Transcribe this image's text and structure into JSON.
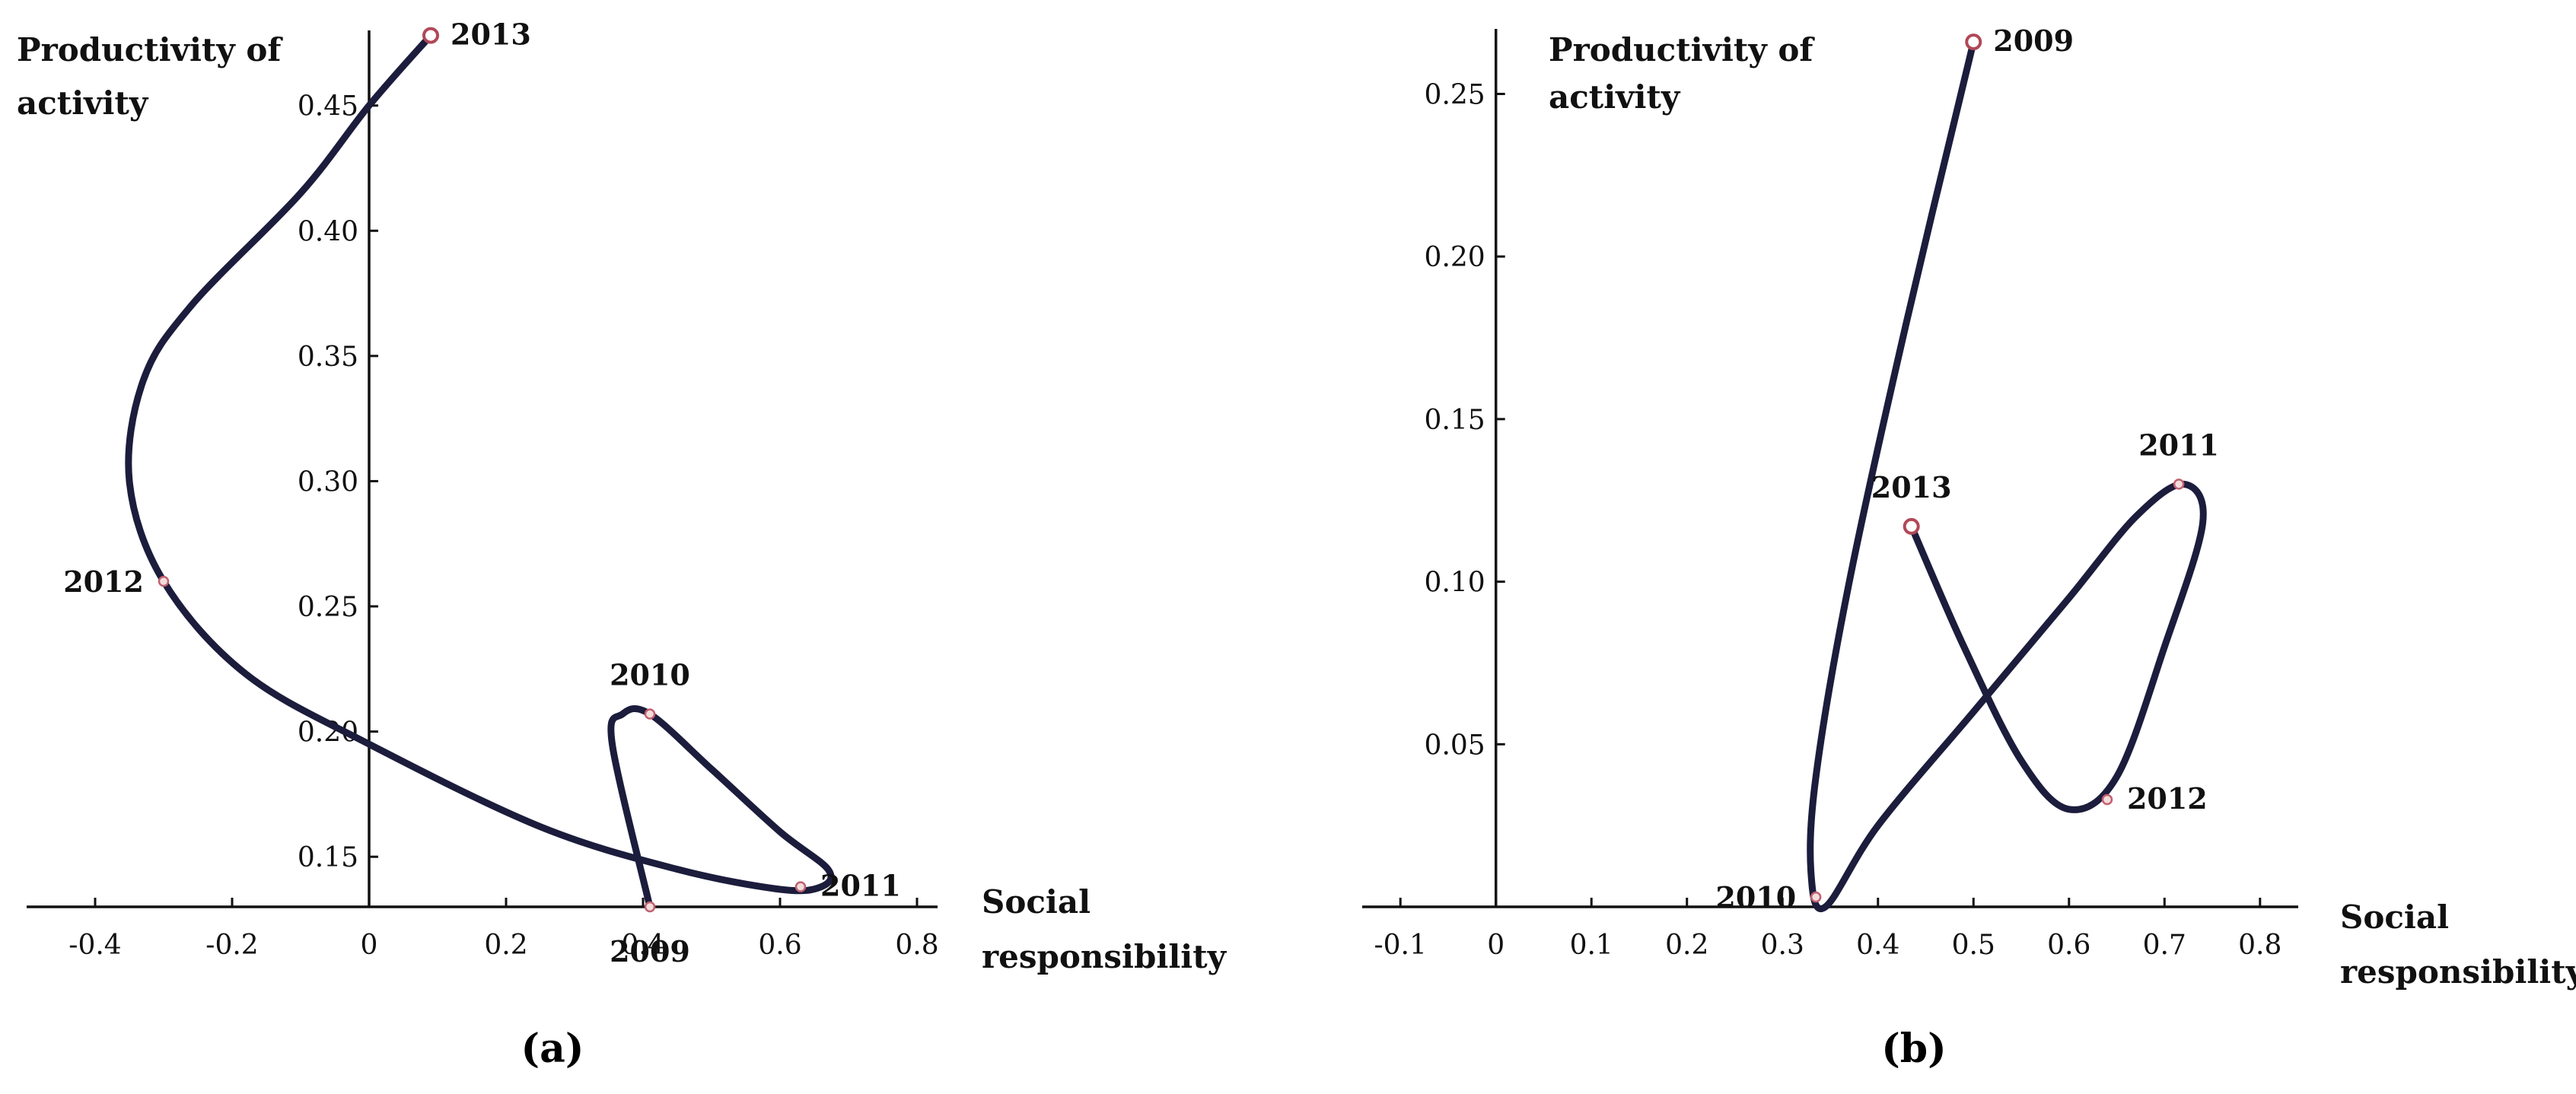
{
  "chart_data": [
    {
      "id": "a",
      "type": "line",
      "caption": "(a)",
      "xlabel": [
        "Social",
        "responsibility"
      ],
      "ylabel": [
        "Productivity of",
        "activity"
      ],
      "xlim": [
        -0.5,
        0.83
      ],
      "ylim": [
        0.13,
        0.48
      ],
      "xticks": [
        -0.4,
        -0.2,
        0,
        0.2,
        0.4,
        0.6,
        0.8
      ],
      "xtick_labels": [
        "-0.4",
        "-0.2",
        "0",
        "0.2",
        "0.4",
        "0.6",
        "0.8"
      ],
      "yticks": [
        0.15,
        0.2,
        0.25,
        0.3,
        0.35,
        0.4,
        0.45
      ],
      "ytick_labels": [
        "0.15",
        "0.20",
        "0.25",
        "0.30",
        "0.35",
        "0.40",
        "0.45"
      ],
      "curve": [
        [
          0.41,
          0.13
        ],
        [
          0.355,
          0.195
        ],
        [
          0.37,
          0.207
        ],
        [
          0.41,
          0.207
        ],
        [
          0.5,
          0.185
        ],
        [
          0.6,
          0.16
        ],
        [
          0.67,
          0.145
        ],
        [
          0.66,
          0.138
        ],
        [
          0.6,
          0.137
        ],
        [
          0.45,
          0.145
        ],
        [
          0.25,
          0.162
        ],
        [
          0.0,
          0.195
        ],
        [
          -0.18,
          0.223
        ],
        [
          -0.3,
          0.26
        ],
        [
          -0.35,
          0.3
        ],
        [
          -0.33,
          0.34
        ],
        [
          -0.26,
          0.37
        ],
        [
          -0.1,
          0.415
        ],
        [
          0.0,
          0.45
        ],
        [
          0.09,
          0.478
        ]
      ],
      "points": [
        {
          "year": "2009",
          "x": 0.41,
          "y": 0.13,
          "label_pos": "below"
        },
        {
          "year": "2010",
          "x": 0.41,
          "y": 0.207,
          "label_pos": "above"
        },
        {
          "year": "2011",
          "x": 0.63,
          "y": 0.138,
          "label_pos": "right"
        },
        {
          "year": "2012",
          "x": -0.3,
          "y": 0.26,
          "label_pos": "left"
        },
        {
          "year": "2013",
          "x": 0.09,
          "y": 0.478,
          "label_pos": "right",
          "open_marker": true
        }
      ]
    },
    {
      "id": "b",
      "type": "line",
      "caption": "(b)",
      "xlabel": [
        "Social",
        "responsibility"
      ],
      "ylabel": [
        "Productivity of",
        "activity"
      ],
      "xlim": [
        -0.14,
        0.84
      ],
      "ylim": [
        0.0,
        0.27
      ],
      "xticks": [
        -0.1,
        0,
        0.1,
        0.2,
        0.3,
        0.4,
        0.5,
        0.6,
        0.7,
        0.8
      ],
      "xtick_labels": [
        "-0.1",
        "0",
        "0.1",
        "0.2",
        "0.3",
        "0.4",
        "0.5",
        "0.6",
        "0.7",
        "0.8"
      ],
      "yticks": [
        0.05,
        0.1,
        0.15,
        0.2,
        0.25
      ],
      "ytick_labels": [
        "0.05",
        "0.10",
        "0.15",
        "0.20",
        "0.25"
      ],
      "curve": [
        [
          0.5,
          0.266
        ],
        [
          0.43,
          0.18
        ],
        [
          0.37,
          0.1
        ],
        [
          0.335,
          0.04
        ],
        [
          0.33,
          0.01
        ],
        [
          0.345,
          0.0
        ],
        [
          0.4,
          0.025
        ],
        [
          0.5,
          0.06
        ],
        [
          0.6,
          0.095
        ],
        [
          0.67,
          0.12
        ],
        [
          0.72,
          0.13
        ],
        [
          0.74,
          0.118
        ],
        [
          0.7,
          0.08
        ],
        [
          0.65,
          0.04
        ],
        [
          0.6,
          0.03
        ],
        [
          0.55,
          0.045
        ],
        [
          0.49,
          0.08
        ],
        [
          0.435,
          0.117
        ]
      ],
      "points": [
        {
          "year": "2009",
          "x": 0.5,
          "y": 0.266,
          "label_pos": "right",
          "open_marker": true
        },
        {
          "year": "2010",
          "x": 0.335,
          "y": 0.003,
          "label_pos": "left"
        },
        {
          "year": "2011",
          "x": 0.715,
          "y": 0.13,
          "label_pos": "above"
        },
        {
          "year": "2012",
          "x": 0.64,
          "y": 0.033,
          "label_pos": "right"
        },
        {
          "year": "2013",
          "x": 0.435,
          "y": 0.117,
          "label_pos": "above",
          "open_marker": true
        }
      ]
    }
  ]
}
